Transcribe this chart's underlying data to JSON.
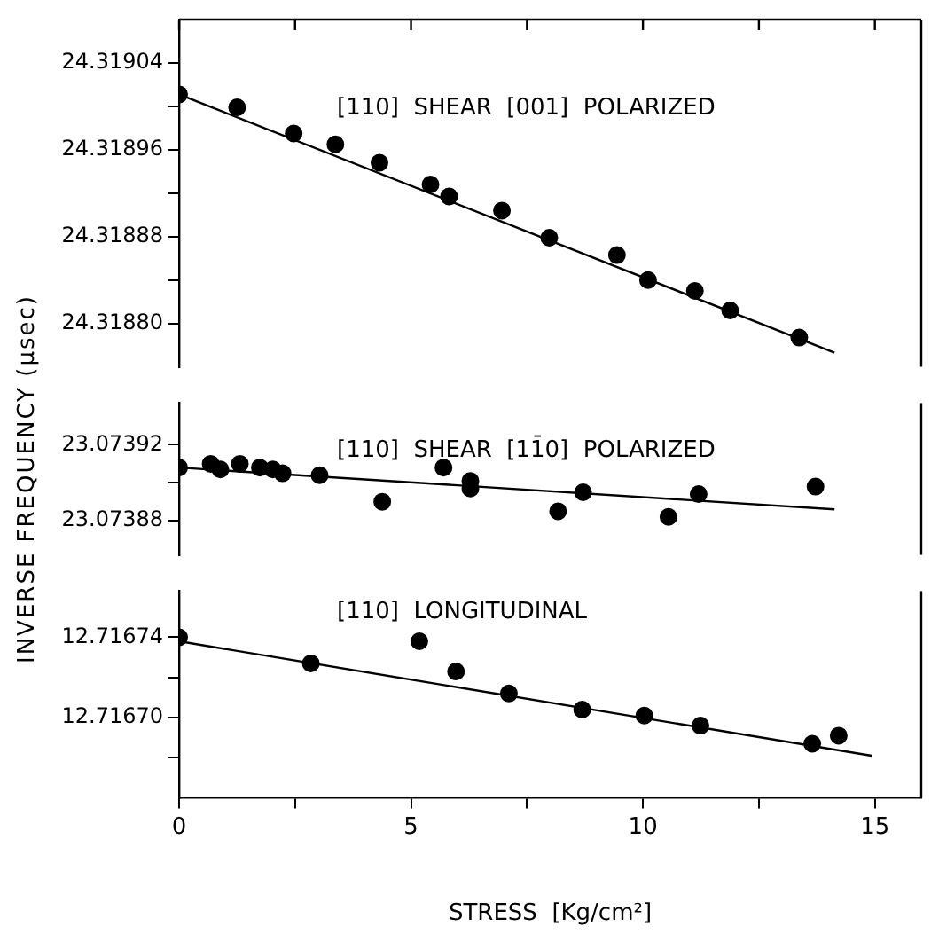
{
  "chart_data": [
    {
      "type": "scatter",
      "ylabel": "INVERSE FREQUENCY (μsec)",
      "annotations": [
        "[110]  SHEAR  [001]  POLARIZED"
      ],
      "xlim": [
        0,
        16
      ],
      "xticks": [
        0,
        {
          "value": 2.5,
          "label": null
        },
        5,
        {
          "value": 7.5,
          "label": null
        },
        10,
        {
          "value": 12.5,
          "label": null
        },
        15
      ],
      "ylim": [
        24.31876,
        24.31908
      ],
      "yticks": [
        24.31904,
        {
          "value": 24.319,
          "label": null
        },
        24.31896,
        {
          "value": 24.31892,
          "label": null
        },
        24.31888,
        {
          "value": 24.31884,
          "label": null
        },
        {
          "value": 24.3188,
          "label": "24.31880"
        }
      ],
      "tick_labels": "y",
      "marker": "circle",
      "legend": false,
      "series": [
        {
          "color": "#000000",
          "x": [
            0,
            1.25,
            2.47,
            3.37,
            4.32,
            5.42,
            5.82,
            6.96,
            7.98,
            9.44,
            10.11,
            11.12,
            11.88,
            13.37
          ],
          "values": [
            24.319011,
            24.318999,
            24.318975,
            24.318965,
            24.318948,
            24.318928,
            24.318917,
            24.318904,
            24.318879,
            24.318863,
            24.31884,
            24.31883,
            24.318812,
            24.318787
          ]
        },
        {
          "type": "line",
          "marker": "none",
          "color": "#000000",
          "x": [
            0,
            14.13
          ],
          "values": [
            24.319011,
            24.318773
          ]
        }
      ]
    },
    {
      "type": "scatter",
      "annotations": [
        "[110]  SHEAR  [11̄0]  POLARIZED"
      ],
      "xlim": [
        0,
        16
      ],
      "ylim": [
        23.073862,
        23.073942
      ],
      "yticks": [
        23.07392,
        {
          "value": 23.0739,
          "label": null
        },
        23.07388
      ],
      "tick_labels": "y",
      "marker": "circle",
      "legend": false,
      "series": [
        {
          "color": "#000000",
          "x": [
            0,
            0.68,
            0.89,
            1.31,
            1.74,
            2.02,
            2.23,
            3.03,
            4.38,
            5.7,
            6.28,
            6.28,
            8.17,
            8.71,
            10.55,
            11.2,
            13.72
          ],
          "values": [
            23.073908,
            23.07391,
            23.073907,
            23.07391,
            23.073908,
            23.073907,
            23.073905,
            23.073904,
            23.07389,
            23.073908,
            23.073901,
            23.073897,
            23.073885,
            23.073895,
            23.073882,
            23.073894,
            23.073898
          ]
        },
        {
          "type": "line",
          "marker": "none",
          "color": "#000000",
          "x": [
            0,
            14.13
          ],
          "values": [
            23.073908,
            23.073886
          ]
        }
      ]
    },
    {
      "type": "scatter",
      "xlabel": "STRESS  [Kg/cm²]",
      "annotations": [
        "[110]  LONGITUDINAL"
      ],
      "xlim": [
        0,
        16
      ],
      "xticks": [
        0,
        {
          "value": 2.5,
          "label": null
        },
        5,
        {
          "value": 7.5,
          "label": null
        },
        10,
        {
          "value": 12.5,
          "label": null
        },
        15
      ],
      "ylim": [
        12.71666,
        12.716763
      ],
      "yticks": [
        12.71674,
        {
          "value": 12.71672,
          "label": null
        },
        {
          "value": 12.7167,
          "label": "12.71670"
        },
        {
          "value": 12.71668,
          "label": null
        }
      ],
      "marker": "circle",
      "legend": false,
      "series": [
        {
          "color": "#000000",
          "x": [
            0,
            2.84,
            5.18,
            5.97,
            7.11,
            8.69,
            10.03,
            11.24,
            13.65,
            14.22
          ],
          "values": [
            12.71674,
            12.716727,
            12.716738,
            12.716723,
            12.716712,
            12.716704,
            12.716701,
            12.716696,
            12.716687,
            12.716691
          ]
        },
        {
          "type": "line",
          "marker": "none",
          "color": "#000000",
          "x": [
            0,
            14.93
          ],
          "values": [
            12.716738,
            12.716681
          ]
        }
      ]
    }
  ]
}
